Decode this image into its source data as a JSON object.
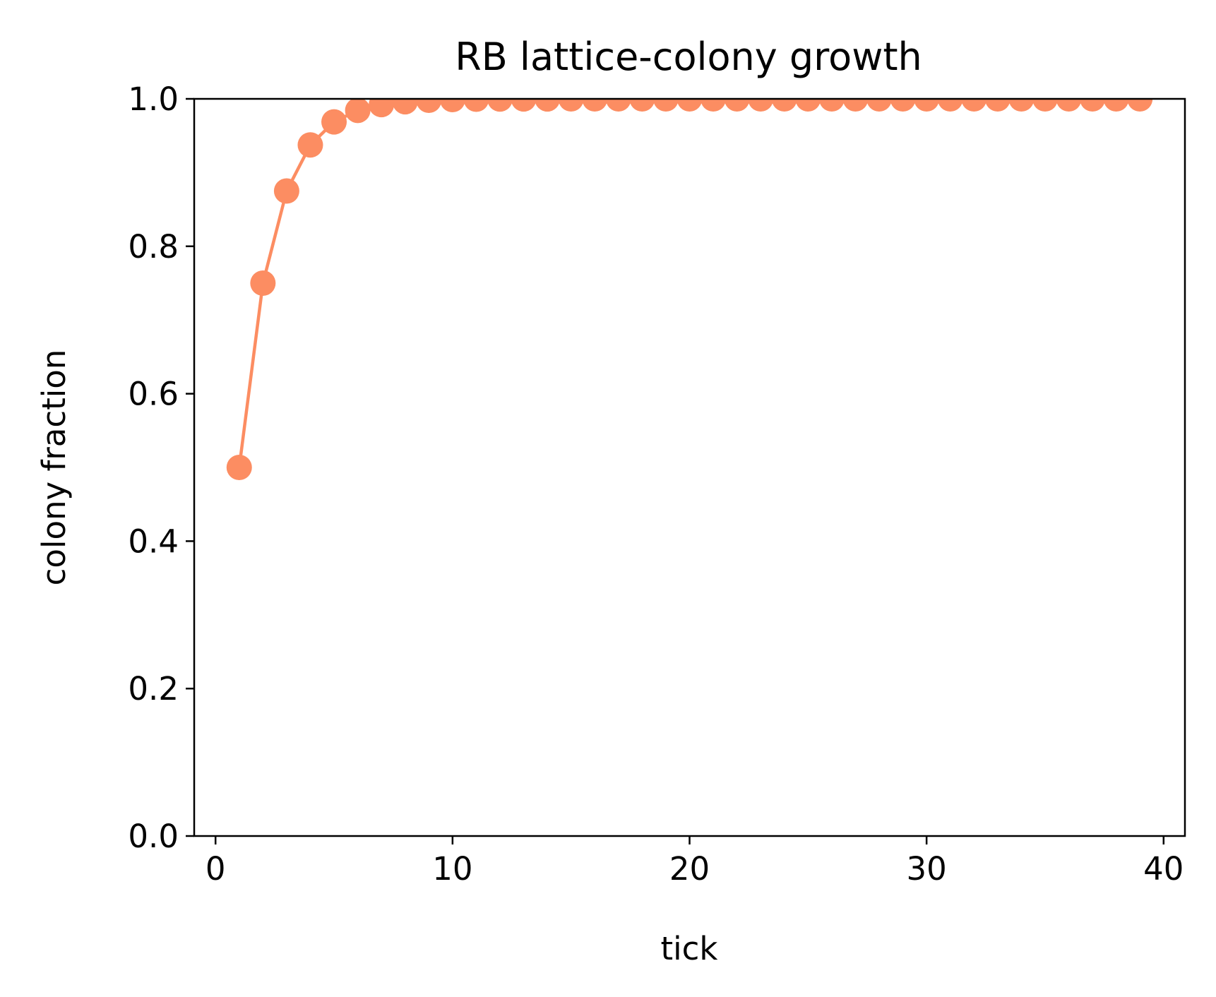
{
  "chart_data": {
    "type": "line",
    "title": "RB lattice-colony growth",
    "xlabel": "tick",
    "ylabel": "colony fraction",
    "xlim": [
      -0.9,
      40.9
    ],
    "ylim": [
      0.0,
      1.0
    ],
    "grid": false,
    "legend": "none",
    "x_ticks": [
      0,
      10,
      20,
      30,
      40
    ],
    "x_tick_labels": [
      "0",
      "10",
      "20",
      "30",
      "40"
    ],
    "y_ticks": [
      0.0,
      0.2,
      0.4,
      0.6,
      0.8,
      1.0
    ],
    "y_tick_labels": [
      "0.0",
      "0.2",
      "0.4",
      "0.6",
      "0.8",
      "1.0"
    ],
    "series": [
      {
        "color": "#fc8d62",
        "marker": "circle",
        "x": [
          1,
          2,
          3,
          4,
          5,
          6,
          7,
          8,
          9,
          10,
          11,
          12,
          13,
          14,
          15,
          16,
          17,
          18,
          19,
          20,
          21,
          22,
          23,
          24,
          25,
          26,
          27,
          28,
          29,
          30,
          31,
          32,
          33,
          34,
          35,
          36,
          37,
          38,
          39
        ],
        "values": [
          0.5,
          0.75,
          0.875,
          0.9375,
          0.96875,
          0.984375,
          0.992188,
          0.996094,
          0.998047,
          0.999023,
          0.999512,
          0.999756,
          0.999878,
          0.999939,
          0.999969,
          0.999985,
          0.999992,
          0.999996,
          0.999998,
          0.999999,
          1.0,
          1.0,
          1.0,
          1.0,
          1.0,
          1.0,
          1.0,
          1.0,
          1.0,
          1.0,
          1.0,
          1.0,
          1.0,
          1.0,
          1.0,
          1.0,
          1.0,
          1.0,
          1.0
        ]
      }
    ]
  }
}
